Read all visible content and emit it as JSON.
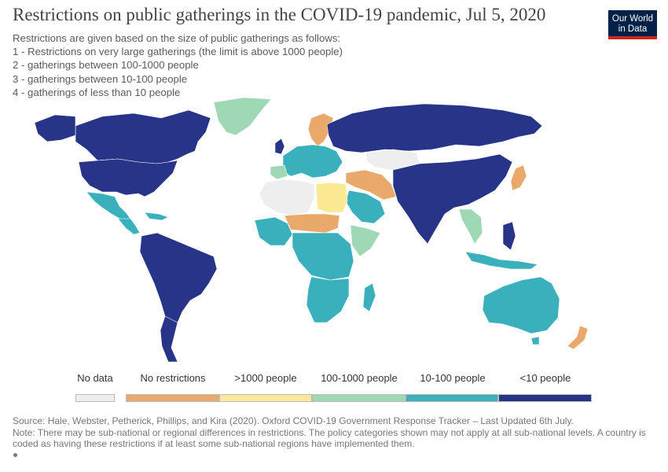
{
  "header": {
    "title": "Restrictions on public gatherings in the COVID-19 pandemic, Jul 5, 2020",
    "subtitle_lines": [
      "Restrictions are given based on the size of public gatherings as follows:",
      "1 - Restrictions on very large gatherings (the limit is above 1000 people)",
      "2 - gatherings between 100-1000 people",
      "3 - gatherings between 10-100 people",
      "4 - gatherings of less than 10 people"
    ]
  },
  "logo": {
    "line1": "Our World",
    "line2": "in Data"
  },
  "legend": {
    "items": [
      {
        "label": "No data",
        "color": "#eeeeee"
      },
      {
        "label": "No restrictions",
        "color": "#e8a96a"
      },
      {
        "label": ">1000 people",
        "color": "#fbea93"
      },
      {
        "label": "100-1000 people",
        "color": "#9fd8b4"
      },
      {
        "label": "10-100 people",
        "color": "#3bb0bd"
      },
      {
        "label": "<10 people",
        "color": "#283488"
      }
    ]
  },
  "footer": {
    "source": "Source: Hale, Webster, Petherick, Phillips, and Kira (2020). Oxford COVID-19 Government Response Tracker – Last Updated 6th July.",
    "note": "Note: There may be sub-national or regional differences in restrictions. The policy categories shown may not apply at all sub-national levels. A country is coded as having these restrictions if at least some sub-national regions have implemented them."
  },
  "regions": {
    "canada": "<10 people",
    "usa": "<10 people",
    "greenland": "100-1000 people",
    "mexico": "10-100 people",
    "central_america": "10-100 people",
    "south_america": "<10 people",
    "southern_cone": "<10 people",
    "europe": "10-100 people",
    "scandinavia": "No restrictions",
    "russia": "<10 people",
    "north_africa": "No data",
    "libya_egypt": ">1000 people",
    "west_africa": "10-100 people",
    "sahel": "No restrictions",
    "central_africa": "10-100 people",
    "southern_africa": "10-100 people",
    "middle_east": "No restrictions",
    "arabia": "10-100 people",
    "central_asia": "10-100 people",
    "china_india": "<10 people",
    "southeast_asia": "100-1000 people",
    "japan": "No restrictions",
    "australia": "10-100 people",
    "new_zealand": "No restrictions",
    "madagascar": "10-100 people",
    "philippines": "<10 people"
  }
}
